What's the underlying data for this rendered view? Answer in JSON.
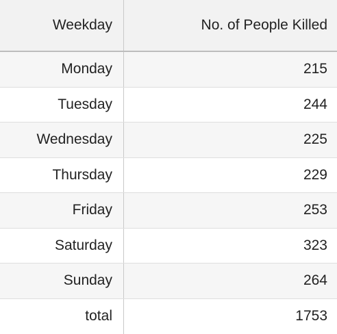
{
  "chart_data": {
    "type": "table",
    "columns": [
      "Weekday",
      "No. of People Killed"
    ],
    "rows": [
      {
        "day": "Monday",
        "value": "215"
      },
      {
        "day": "Tuesday",
        "value": "244"
      },
      {
        "day": "Wednesday",
        "value": "225"
      },
      {
        "day": "Thursday",
        "value": "229"
      },
      {
        "day": "Friday",
        "value": "253"
      },
      {
        "day": "Saturday",
        "value": "323"
      },
      {
        "day": "Sunday",
        "value": "264"
      },
      {
        "day": "total",
        "value": "1753"
      }
    ]
  }
}
